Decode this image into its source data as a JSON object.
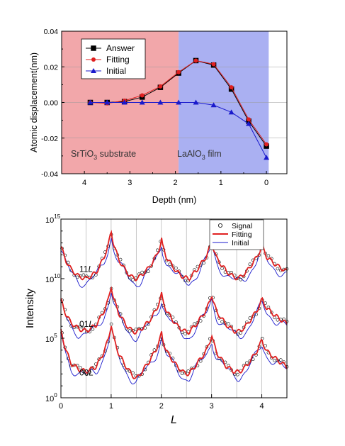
{
  "colors": {
    "substrate_region": "#f2a7aa",
    "film_region": "#aab0f2",
    "answer": "#000000",
    "fitting": "#e02020",
    "initial": "#1a1acc",
    "signal": "#000000"
  },
  "chart_data": [
    {
      "type": "line",
      "xlabel": "Depth (nm)",
      "ylabel": "Atomic displacement(nm)",
      "xlim": [
        4.5,
        -0.45
      ],
      "ylim": [
        -0.04,
        0.04
      ],
      "x_reversed": true,
      "xticks": [
        4,
        3,
        2,
        1,
        0
      ],
      "xtick_labels": [
        "4",
        "3",
        "2",
        "1",
        "0"
      ],
      "yticks": [
        -0.04,
        -0.02,
        0.0,
        0.02,
        0.04
      ],
      "ytick_labels": [
        "-0.04",
        "-0.02",
        "0.00",
        "0.02",
        "0.04"
      ],
      "grid": "horizontal at y = -0.02, 0, 0.02",
      "legend_position": "top-left",
      "regions": [
        {
          "label_parts": [
            "SrTiO",
            "3",
            " substrate"
          ],
          "x_from": 4.5,
          "x_to": 1.93
        },
        {
          "label_parts": [
            "LaAlO",
            "3",
            " film"
          ],
          "x_from": 1.93,
          "x_to": -0.05
        }
      ],
      "x": [
        3.87,
        3.5,
        3.12,
        2.73,
        2.33,
        1.93,
        1.55,
        1.16,
        0.77,
        0.39,
        0.0
      ],
      "series": [
        {
          "name": "Answer",
          "marker": "square",
          "values": [
            0.0,
            0.0,
            0.0005,
            0.003,
            0.0085,
            0.0165,
            0.0235,
            0.021,
            0.0075,
            -0.0105,
            -0.0245
          ]
        },
        {
          "name": "Fitting",
          "marker": "circle",
          "values": [
            0.0,
            -0.0005,
            0.001,
            0.004,
            0.009,
            0.017,
            0.0235,
            0.0215,
            0.0085,
            -0.0095,
            -0.0235
          ]
        },
        {
          "name": "Initial",
          "marker": "triangle",
          "values": [
            0.0,
            0.0,
            0.0,
            0.0,
            0.0,
            0.0,
            0.0,
            -0.0015,
            -0.0055,
            -0.012,
            -0.031
          ]
        }
      ]
    },
    {
      "type": "line",
      "xlabel": "L",
      "ylabel": "Intensity",
      "xlim": [
        0,
        4.5
      ],
      "y_scale": "log",
      "ylim_exponent": [
        0,
        15
      ],
      "xticks": [
        0,
        1,
        2,
        3,
        4
      ],
      "xtick_labels": [
        "0",
        "1",
        "2",
        "3",
        "4"
      ],
      "yticks": [
        {
          "base": "10",
          "exp": "0",
          "value": 1
        },
        {
          "base": "10",
          "exp": "5",
          "value": 100000
        },
        {
          "base": "10",
          "exp": "10",
          "value": 10000000000
        },
        {
          "base": "10",
          "exp": "15",
          "value": 1000000000000000
        }
      ],
      "grid": "vertical at L = 0.5, 1, 1.5, 2, 2.5, 3, 3.5, 4",
      "legend_position": "top-right",
      "rod_labels": [
        {
          "pre": "11",
          "italic": "L",
          "log_y": 10.8
        },
        {
          "pre": "01",
          "italic": "L",
          "log_y": 6.2
        },
        {
          "pre": "00",
          "italic": "L",
          "log_y": 2.1
        }
      ],
      "rods": [
        {
          "name": "11L",
          "L": [
            0.0,
            0.1,
            0.2,
            0.35,
            0.5,
            0.7,
            0.85,
            0.95,
            1.0,
            1.05,
            1.15,
            1.3,
            1.42,
            1.5,
            1.58,
            1.75,
            1.9,
            1.98,
            2.0,
            2.02,
            2.1,
            2.3,
            2.45,
            2.55,
            2.7,
            2.9,
            2.98,
            3.0,
            3.02,
            3.1,
            3.3,
            3.45,
            3.55,
            3.7,
            3.9,
            3.98,
            4.0,
            4.02,
            4.1,
            4.3,
            4.5
          ],
          "log_values": [
            12.7,
            11.5,
            10.8,
            10.2,
            10.0,
            10.5,
            11.7,
            12.9,
            14.0,
            12.9,
            11.6,
            10.6,
            10.1,
            10.0,
            10.2,
            10.9,
            11.9,
            12.8,
            13.5,
            12.8,
            11.8,
            10.6,
            10.1,
            10.0,
            10.7,
            11.9,
            12.8,
            13.3,
            12.8,
            11.7,
            10.6,
            10.1,
            10.05,
            10.6,
            11.8,
            12.5,
            13.0,
            12.6,
            11.8,
            11.1,
            10.6
          ]
        },
        {
          "name": "01L",
          "L": [
            0.0,
            0.1,
            0.2,
            0.35,
            0.5,
            0.7,
            0.85,
            0.95,
            1.0,
            1.05,
            1.15,
            1.3,
            1.42,
            1.5,
            1.58,
            1.75,
            1.9,
            1.98,
            2.0,
            2.02,
            2.1,
            2.3,
            2.45,
            2.55,
            2.7,
            2.9,
            2.98,
            3.0,
            3.02,
            3.1,
            3.3,
            3.45,
            3.55,
            3.7,
            3.9,
            3.98,
            4.0,
            4.02,
            4.1,
            4.3,
            4.5
          ],
          "log_values": [
            8.2,
            7.0,
            6.3,
            5.8,
            5.6,
            6.1,
            7.2,
            8.3,
            9.4,
            8.3,
            7.1,
            6.1,
            5.6,
            5.5,
            5.7,
            6.4,
            7.4,
            8.3,
            8.8,
            8.3,
            7.3,
            6.1,
            5.6,
            5.5,
            6.2,
            7.4,
            8.3,
            8.8,
            8.3,
            7.2,
            6.1,
            5.6,
            5.55,
            6.1,
            7.3,
            8.0,
            8.3,
            8.1,
            7.5,
            6.8,
            6.2
          ]
        },
        {
          "name": "00L",
          "L": [
            0.0,
            0.1,
            0.2,
            0.35,
            0.5,
            0.7,
            0.85,
            0.95,
            1.0,
            1.05,
            1.15,
            1.3,
            1.42,
            1.5,
            1.58,
            1.75,
            1.9,
            1.98,
            2.0,
            2.02,
            2.1,
            2.3,
            2.45,
            2.55,
            2.7,
            2.9,
            2.98,
            3.0,
            3.02,
            3.1,
            3.3,
            3.45,
            3.55,
            3.7,
            3.9,
            3.98,
            4.0,
            4.02,
            4.1,
            4.3,
            4.5
          ],
          "log_values": [
            5.6,
            4.0,
            2.9,
            2.4,
            2.2,
            2.6,
            3.8,
            5.0,
            6.2,
            5.0,
            3.7,
            2.6,
            1.9,
            1.6,
            2.0,
            3.0,
            4.1,
            5.0,
            5.6,
            5.0,
            3.9,
            2.7,
            2.1,
            2.0,
            2.8,
            4.0,
            4.9,
            5.4,
            4.9,
            3.8,
            2.6,
            2.2,
            2.15,
            2.7,
            3.9,
            4.6,
            4.9,
            4.6,
            3.9,
            3.2,
            2.6
          ]
        }
      ],
      "series": [
        {
          "name": "Signal",
          "style": "open circles"
        },
        {
          "name": "Fitting",
          "style": "thick red line"
        },
        {
          "name": "Initial",
          "style": "thin blue line"
        }
      ]
    }
  ]
}
